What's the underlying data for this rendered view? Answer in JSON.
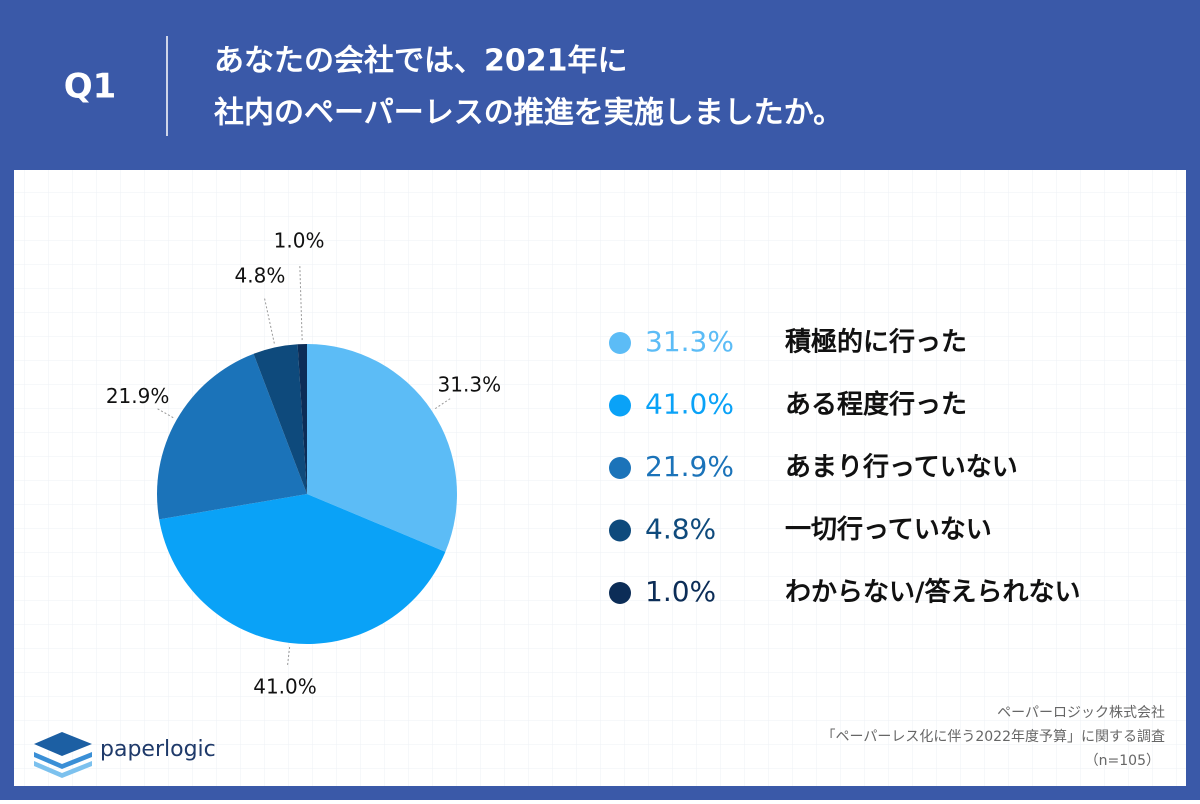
{
  "header": {
    "number": "Q1",
    "lines": [
      "あなたの会社では、2021年に",
      "社内のペーパーレスの推進を実施しましたか。"
    ]
  },
  "chart_data": {
    "type": "pie",
    "categories": [
      "積極的に行った",
      "ある程度行った",
      "あまり行っていない",
      "一切行っていない",
      "わからない/答えられない"
    ],
    "values": [
      31.3,
      41.0,
      21.9,
      4.8,
      1.0
    ],
    "value_labels": [
      "31.3%",
      "41.0%",
      "21.9%",
      "4.8%",
      "1.0%"
    ],
    "colors": [
      "#5cbcf6",
      "#0aa2f7",
      "#1b73b9",
      "#0e4a7c",
      "#0c2d57"
    ],
    "legend_position": "right"
  },
  "footer": {
    "lines": [
      "ペーパーロジック株式会社",
      "「ペーパーレス化に伴う2022年度予算」に関する調査",
      "（n=105）"
    ]
  },
  "logo": "paperlogic"
}
